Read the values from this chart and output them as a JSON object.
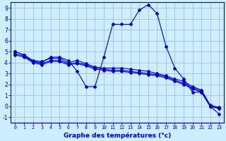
{
  "title": "Graphe des températures (°c)",
  "background_color": "#cceeff",
  "grid_color": "#aabbcc",
  "line_color": "#0000cc",
  "xlim": [
    -0.5,
    23.5
  ],
  "ylim": [
    -1.5,
    9.5
  ],
  "xticks": [
    0,
    1,
    2,
    3,
    4,
    5,
    6,
    7,
    8,
    9,
    10,
    11,
    12,
    13,
    14,
    15,
    16,
    17,
    18,
    19,
    20,
    21,
    22,
    23
  ],
  "yticks": [
    -1,
    0,
    1,
    2,
    3,
    4,
    5,
    6,
    7,
    8,
    9
  ],
  "line1_x": [
    0,
    1,
    2,
    3,
    4,
    5,
    6,
    7,
    8,
    9,
    10,
    11,
    12,
    13,
    14,
    15,
    16,
    17,
    18,
    19,
    20,
    21,
    22,
    23
  ],
  "line1_y": [
    5.0,
    4.7,
    4.1,
    4.0,
    4.5,
    4.5,
    4.2,
    3.2,
    1.8,
    1.8,
    4.5,
    7.5,
    7.5,
    7.5,
    8.8,
    9.3,
    8.5,
    5.5,
    3.5,
    2.5,
    1.3,
    1.3,
    0.0,
    -0.7
  ],
  "line2_x": [
    0,
    1,
    2,
    3,
    4,
    5,
    6,
    7,
    8,
    9,
    10,
    11,
    12,
    13,
    14,
    15,
    16,
    17,
    18,
    19,
    20,
    21,
    22,
    23
  ],
  "line2_y": [
    5.0,
    4.7,
    4.2,
    4.1,
    4.4,
    4.4,
    4.0,
    4.2,
    3.9,
    3.6,
    3.5,
    3.5,
    3.5,
    3.4,
    3.3,
    3.2,
    3.0,
    2.8,
    2.5,
    2.3,
    1.8,
    1.5,
    0.1,
    -0.1
  ],
  "line3_x": [
    0,
    1,
    2,
    3,
    4,
    5,
    6,
    7,
    8,
    9,
    10,
    11,
    12,
    13,
    14,
    15,
    16,
    17,
    18,
    19,
    20,
    21,
    22,
    23
  ],
  "line3_y": [
    4.8,
    4.6,
    4.1,
    3.9,
    4.2,
    4.2,
    3.9,
    4.0,
    3.8,
    3.5,
    3.4,
    3.3,
    3.3,
    3.2,
    3.1,
    3.0,
    2.9,
    2.7,
    2.4,
    2.1,
    1.7,
    1.4,
    0.0,
    -0.2
  ],
  "line4_x": [
    0,
    1,
    2,
    3,
    4,
    5,
    6,
    7,
    8,
    9,
    10,
    11,
    12,
    13,
    14,
    15,
    16,
    17,
    18,
    19,
    20,
    21,
    22,
    23
  ],
  "line4_y": [
    4.7,
    4.5,
    4.0,
    3.8,
    4.1,
    4.1,
    3.8,
    3.9,
    3.7,
    3.4,
    3.3,
    3.2,
    3.2,
    3.1,
    3.0,
    2.9,
    2.8,
    2.6,
    2.3,
    2.0,
    1.6,
    1.3,
    0.0,
    -0.15
  ]
}
